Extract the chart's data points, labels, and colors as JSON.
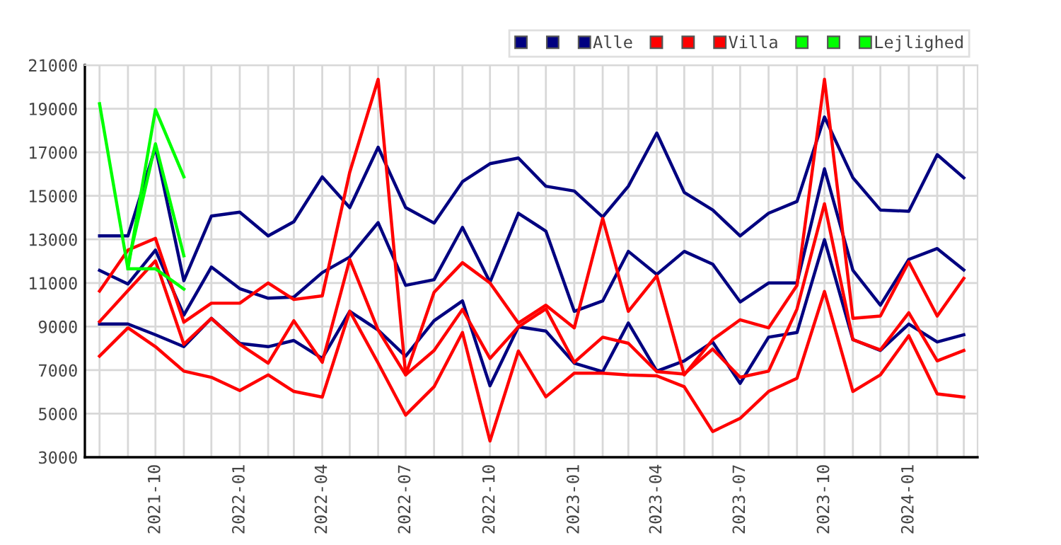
{
  "chart_data": {
    "type": "line",
    "x": [
      "2021-08",
      "2021-09",
      "2021-10",
      "2021-11",
      "2021-12",
      "2022-01",
      "2022-02",
      "2022-03",
      "2022-04",
      "2022-05",
      "2022-06",
      "2022-07",
      "2022-08",
      "2022-09",
      "2022-10",
      "2022-11",
      "2022-12",
      "2023-01",
      "2023-02",
      "2023-03",
      "2023-04",
      "2023-05",
      "2023-06",
      "2023-07",
      "2023-08",
      "2023-09",
      "2023-10",
      "2023-11",
      "2023-12",
      "2024-01",
      "2024-02",
      "2024-03"
    ],
    "series": [
      {
        "color": "#000080",
        "values": [
          13160,
          13160,
          17230,
          11100,
          14070,
          14250,
          13160,
          13810,
          15870,
          14460,
          17230,
          14460,
          13750,
          15650,
          16475,
          16735,
          15440,
          15220,
          14030,
          15440,
          17880,
          15155,
          14350,
          13160,
          14200,
          14740,
          18620,
          15830,
          14350,
          14290,
          16890,
          15830
        ]
      },
      {
        "color": "#000080",
        "values": [
          11580,
          10955,
          12510,
          9525,
          11730,
          10740,
          10300,
          10350,
          11475,
          12190,
          13770,
          10890,
          11150,
          13550,
          11040,
          14200,
          13380,
          9700,
          10175,
          12450,
          11390,
          12450,
          11865,
          10130,
          11000,
          11000,
          16240,
          11580,
          9980,
          12080,
          12580,
          11600
        ]
      },
      {
        "name": "Alle",
        "color": "#000080",
        "values": [
          9115,
          9115,
          8620,
          8075,
          9375,
          8225,
          8075,
          8360,
          7535,
          9700,
          8835,
          7640,
          9265,
          10175,
          6280,
          8985,
          8790,
          7320,
          6930,
          9160,
          6950,
          7425,
          8290,
          6390,
          8510,
          8725,
          12990,
          8400,
          7900,
          9115,
          8290,
          8620
        ]
      },
      {
        "color": "#ff0000",
        "values": [
          10630,
          12510,
          13050,
          9200,
          10070,
          10070,
          11000,
          10240,
          10410,
          16085,
          20350,
          6780,
          10570,
          11930,
          11000,
          9160,
          9980,
          8940,
          13965,
          9700,
          11320,
          6780,
          8400,
          9310,
          8940,
          10890,
          20350,
          9375,
          9480,
          11970,
          9480,
          11210
        ]
      },
      {
        "color": "#ff0000",
        "values": [
          9225,
          10650,
          12015,
          8185,
          9375,
          8185,
          7320,
          9265,
          7360,
          12080,
          8835,
          6780,
          7900,
          9785,
          7535,
          8985,
          9810,
          7360,
          8510,
          8230,
          6930,
          6820,
          7965,
          6670,
          6950,
          9805,
          14635,
          8400,
          7925,
          9635,
          7425,
          7900
        ]
      },
      {
        "name": "Villa",
        "color": "#ff0000",
        "values": [
          7640,
          8940,
          8075,
          6950,
          6670,
          6060,
          6780,
          6020,
          5760,
          9700,
          7320,
          4935,
          6235,
          8725,
          3745,
          7875,
          5775,
          6860,
          6860,
          6780,
          6735,
          6235,
          4180,
          4785,
          6020,
          6625,
          10610,
          6020,
          6780,
          8575,
          5910,
          5760
        ]
      },
      {
        "color": "#00ff00",
        "values": [
          19225,
          11650,
          18965,
          15870,
          null,
          null,
          null,
          null,
          null,
          null,
          null,
          null,
          null,
          null,
          null,
          null,
          null,
          null,
          null,
          null,
          null,
          null,
          null,
          null,
          null,
          null,
          null,
          null,
          null,
          null,
          null,
          null
        ]
      },
      {
        "color": "#00ff00",
        "values": [
          null,
          11870,
          17385,
          12250,
          null,
          null,
          null,
          null,
          null,
          null,
          null,
          null,
          null,
          null,
          null,
          null,
          null,
          null,
          null,
          null,
          null,
          null,
          null,
          null,
          null,
          null,
          null,
          null,
          null,
          null,
          null,
          null
        ]
      },
      {
        "name": "Lejlighed",
        "color": "#00ff00",
        "values": [
          null,
          11650,
          11650,
          10720,
          null,
          null,
          null,
          null,
          null,
          null,
          null,
          null,
          null,
          null,
          null,
          null,
          null,
          null,
          null,
          null,
          null,
          null,
          null,
          null,
          null,
          null,
          null,
          null,
          null,
          null,
          null,
          null
        ]
      }
    ],
    "xlim": [
      "2021-07-16",
      "2024-03-16"
    ],
    "xticks": [
      {
        "value": "2021-08",
        "label": null
      },
      {
        "value": "2021-09",
        "label": null
      },
      {
        "value": "2021-10",
        "label": "2021-10"
      },
      {
        "value": "2021-11",
        "label": null
      },
      {
        "value": "2021-12",
        "label": null
      },
      {
        "value": "2022-01",
        "label": "2022-01"
      },
      {
        "value": "2022-02",
        "label": null
      },
      {
        "value": "2022-03",
        "label": null
      },
      {
        "value": "2022-04",
        "label": "2022-04"
      },
      {
        "value": "2022-05",
        "label": null
      },
      {
        "value": "2022-06",
        "label": null
      },
      {
        "value": "2022-07",
        "label": "2022-07"
      },
      {
        "value": "2022-08",
        "label": null
      },
      {
        "value": "2022-09",
        "label": null
      },
      {
        "value": "2022-10",
        "label": "2022-10"
      },
      {
        "value": "2022-11",
        "label": null
      },
      {
        "value": "2022-12",
        "label": null
      },
      {
        "value": "2023-01",
        "label": "2023-01"
      },
      {
        "value": "2023-02",
        "label": null
      },
      {
        "value": "2023-03",
        "label": null
      },
      {
        "value": "2023-04",
        "label": "2023-04"
      },
      {
        "value": "2023-05",
        "label": null
      },
      {
        "value": "2023-06",
        "label": null
      },
      {
        "value": "2023-07",
        "label": "2023-07"
      },
      {
        "value": "2023-08",
        "label": null
      },
      {
        "value": "2023-09",
        "label": null
      },
      {
        "value": "2023-10",
        "label": "2023-10"
      },
      {
        "value": "2023-11",
        "label": null
      },
      {
        "value": "2023-12",
        "label": null
      },
      {
        "value": "2024-01",
        "label": "2024-01"
      },
      {
        "value": "2024-02",
        "label": null
      },
      {
        "value": "2024-03",
        "label": null
      }
    ],
    "ylim": [
      3000,
      21000
    ],
    "yticks": [
      3000,
      5000,
      7000,
      9000,
      11000,
      13000,
      15000,
      17000,
      19000,
      21000
    ],
    "grid": true,
    "legend": "top right",
    "marker": "none",
    "line_style": "solid"
  }
}
